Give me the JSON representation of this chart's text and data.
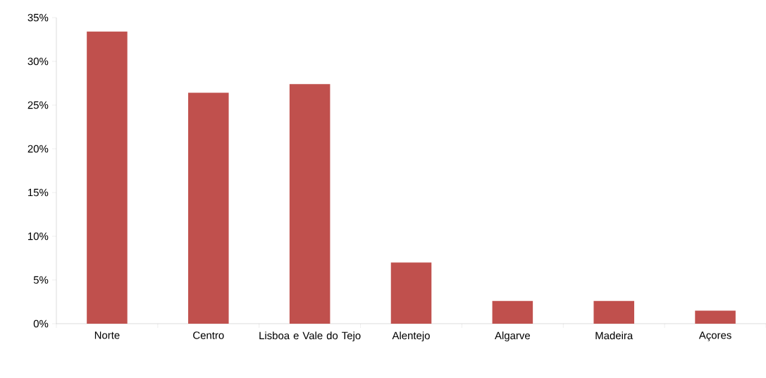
{
  "chart_data": {
    "type": "bar",
    "categories": [
      "Norte",
      "Centro",
      "Lisboa e Vale do Tejo",
      "Alentejo",
      "Algarve",
      "Madeira",
      "Açores"
    ],
    "values": [
      33.4,
      26.4,
      27.4,
      7.0,
      2.6,
      2.6,
      1.5
    ],
    "color": "#c0504d",
    "ylim": [
      0,
      35
    ],
    "yticks": [
      {
        "value": 0,
        "label": "0%"
      },
      {
        "value": 5,
        "label": "5%"
      },
      {
        "value": 10,
        "label": "10%"
      },
      {
        "value": 15,
        "label": "15%"
      },
      {
        "value": 20,
        "label": "20%"
      },
      {
        "value": 25,
        "label": "25%"
      },
      {
        "value": 30,
        "label": "30%"
      },
      {
        "value": 35,
        "label": "35%"
      }
    ],
    "grid": false
  }
}
